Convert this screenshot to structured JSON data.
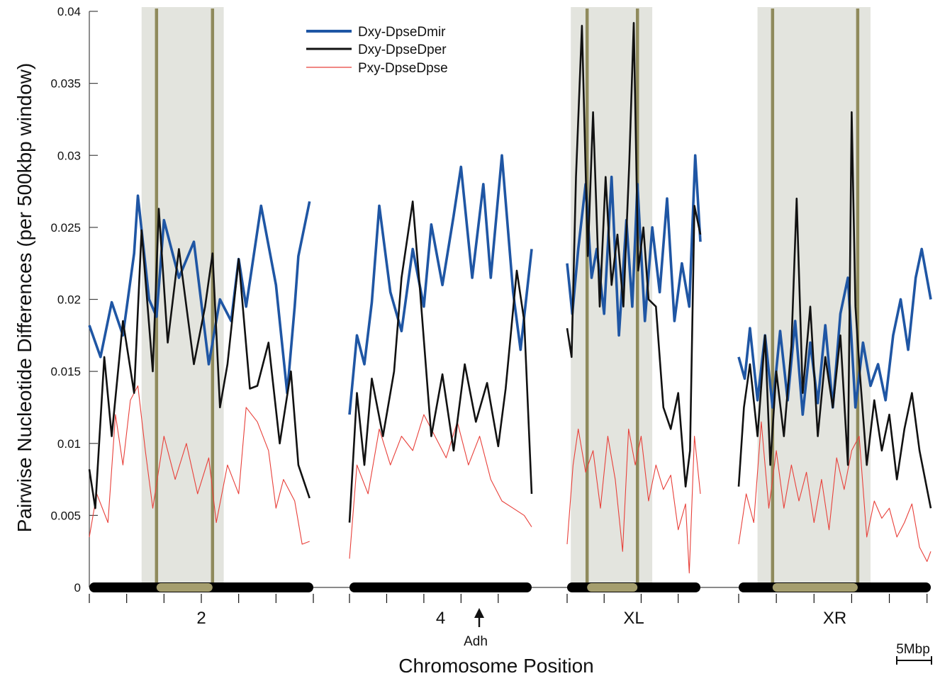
{
  "chart_data": {
    "type": "line",
    "ylabel": "Pairwise Nucleotide Differences (per 500kbp window)",
    "xlabel": "Chromosome Position",
    "ylim": [
      0,
      0.04
    ],
    "yticks": [
      0,
      0.005,
      0.01,
      0.015,
      0.02,
      0.025,
      0.03,
      0.035,
      0.04
    ],
    "ytick_labels": [
      "0",
      "0.005",
      "0.01",
      "0.015",
      "0.02",
      "0.025",
      "0.03",
      "0.035",
      "0.04"
    ],
    "scale_bar_label": "5Mbp",
    "annotation": {
      "label": "Adh",
      "chromosome": "4",
      "position_mbp": 25.5
    },
    "legend": {
      "placement": "top-left"
    },
    "colors": {
      "Dxy-DpseDmir": "#1f56a4",
      "Dxy-DpseDper": "#111111",
      "Pxy-DpseDpse": "#e8403a",
      "shade": "#e3e4de",
      "breakpoint": "#8f8a5c",
      "inversion_bar": "#a59e6e",
      "chromosome_bar": "#000000"
    },
    "chromosomes": [
      {
        "name": "2",
        "length_mbp": 30,
        "inversion_region_mbp": [
          7,
          18
        ],
        "breakpoints_mbp": [
          9,
          16.5
        ],
        "series": [
          {
            "name": "Dxy-DpseDmir",
            "x": [
              0,
              1.5,
              3,
              4.5,
              6,
              6.5,
              8,
              9,
              10,
              12,
              14,
              16,
              17.5,
              19,
              20,
              21,
              23,
              25,
              26.5,
              27.5,
              28,
              29.5
            ],
            "y": [
              0.0182,
              0.016,
              0.0198,
              0.0175,
              0.0232,
              0.0272,
              0.02,
              0.0188,
              0.0255,
              0.0215,
              0.024,
              0.0155,
              0.02,
              0.0185,
              0.0228,
              0.0195,
              0.0265,
              0.021,
              0.0135,
              0.0195,
              0.023,
              0.0268
            ]
          },
          {
            "name": "Dxy-DpseDper",
            "x": [
              0,
              0.8,
              2,
              3,
              4.5,
              6,
              7,
              8.5,
              9.3,
              10.5,
              12,
              14,
              15.5,
              16.5,
              17.5,
              18.5,
              20,
              21.5,
              22.5,
              24,
              25.5,
              27,
              28,
              29.5
            ],
            "y": [
              0.0082,
              0.0055,
              0.016,
              0.0105,
              0.0185,
              0.0135,
              0.0248,
              0.015,
              0.0263,
              0.017,
              0.0235,
              0.0155,
              0.0195,
              0.0232,
              0.0125,
              0.0155,
              0.0228,
              0.0138,
              0.014,
              0.017,
              0.01,
              0.015,
              0.0085,
              0.0062
            ]
          },
          {
            "name": "Pxy-DpseDpse",
            "x": [
              0,
              1,
              2.5,
              3.5,
              4.5,
              5.5,
              6.5,
              7.5,
              8.5,
              10,
              11.5,
              13,
              14.5,
              16,
              17,
              18.5,
              20,
              21,
              22.5,
              24,
              25,
              26,
              27.5,
              28.5,
              29.5
            ],
            "y": [
              0.0035,
              0.0065,
              0.0045,
              0.012,
              0.0085,
              0.013,
              0.014,
              0.0095,
              0.0055,
              0.0105,
              0.0075,
              0.01,
              0.0065,
              0.009,
              0.0045,
              0.0085,
              0.0065,
              0.0125,
              0.0115,
              0.0095,
              0.0055,
              0.0075,
              0.006,
              0.003,
              0.0032
            ]
          }
        ]
      },
      {
        "name": "4",
        "length_mbp": 24.5,
        "series": [
          {
            "name": "Dxy-DpseDmir",
            "x": [
              0,
              1,
              2,
              3,
              4,
              5.5,
              7,
              8.5,
              10,
              11,
              12.5,
              14,
              15,
              16.5,
              18,
              19,
              20.5,
              22,
              23,
              24.5
            ],
            "y": [
              0.012,
              0.0175,
              0.0155,
              0.0198,
              0.0265,
              0.0205,
              0.0178,
              0.0235,
              0.0195,
              0.0252,
              0.021,
              0.0258,
              0.0292,
              0.0215,
              0.028,
              0.0215,
              0.03,
              0.0205,
              0.0165,
              0.0235
            ]
          },
          {
            "name": "Dxy-DpseDper",
            "x": [
              0,
              1,
              2,
              3,
              4.5,
              6,
              7,
              8.5,
              9.5,
              11,
              12.5,
              14,
              15.5,
              17,
              18.5,
              20,
              21,
              22.5,
              23.5,
              24.5
            ],
            "y": [
              0.0045,
              0.0135,
              0.0085,
              0.0145,
              0.0105,
              0.015,
              0.0215,
              0.0268,
              0.0205,
              0.0105,
              0.0148,
              0.0095,
              0.0155,
              0.0115,
              0.0142,
              0.0098,
              0.0138,
              0.022,
              0.0185,
              0.0065
            ]
          },
          {
            "name": "Pxy-DpseDpse",
            "x": [
              0,
              1,
              2.5,
              4,
              5.5,
              7,
              8.5,
              10,
              11.5,
              13,
              14.5,
              16,
              17.5,
              19,
              20.5,
              22,
              23.5,
              24.5
            ],
            "y": [
              0.002,
              0.0085,
              0.0065,
              0.011,
              0.0085,
              0.0105,
              0.0095,
              0.012,
              0.0105,
              0.009,
              0.0115,
              0.0085,
              0.0105,
              0.0075,
              0.006,
              0.0055,
              0.005,
              0.0042
            ]
          }
        ]
      },
      {
        "name": "XL",
        "length_mbp": 18,
        "inversion_region_mbp": [
          0.5,
          11.5
        ],
        "breakpoints_mbp": [
          2.7,
          9.5
        ],
        "series": [
          {
            "name": "Dxy-DpseDmir",
            "x": [
              0,
              0.7,
              1.5,
              2.5,
              3.3,
              4,
              5,
              6,
              7,
              8,
              8.8,
              9.5,
              10.5,
              11.5,
              12.5,
              13.5,
              14.5,
              15.5,
              16.5,
              17.3,
              18
            ],
            "y": [
              0.0225,
              0.019,
              0.0235,
              0.028,
              0.0215,
              0.0235,
              0.019,
              0.0285,
              0.0175,
              0.0255,
              0.0195,
              0.028,
              0.0185,
              0.025,
              0.0205,
              0.027,
              0.0185,
              0.0225,
              0.0195,
              0.03,
              0.024
            ]
          },
          {
            "name": "Dxy-DpseDper",
            "x": [
              0,
              0.6,
              1.2,
              2,
              2.8,
              3.5,
              4.4,
              5.2,
              6,
              6.8,
              7.6,
              8.4,
              9,
              9.6,
              10.3,
              11,
              12,
              13,
              14,
              15,
              16,
              16.6,
              17.2,
              18
            ],
            "y": [
              0.018,
              0.016,
              0.0285,
              0.039,
              0.023,
              0.033,
              0.0195,
              0.0285,
              0.021,
              0.0245,
              0.0195,
              0.0295,
              0.0392,
              0.022,
              0.025,
              0.02,
              0.0195,
              0.0125,
              0.011,
              0.0135,
              0.007,
              0.0095,
              0.0265,
              0.0245
            ]
          },
          {
            "name": "Pxy-DpseDpse",
            "x": [
              0,
              0.8,
              1.5,
              2.5,
              3.5,
              4.5,
              5.5,
              6.5,
              7.5,
              8.3,
              9.2,
              10,
              11,
              12,
              13,
              14,
              15,
              16,
              16.5,
              17.2,
              18
            ],
            "y": [
              0.003,
              0.0085,
              0.011,
              0.008,
              0.0095,
              0.0055,
              0.0105,
              0.0075,
              0.0025,
              0.011,
              0.0085,
              0.0105,
              0.006,
              0.0085,
              0.0068,
              0.0078,
              0.004,
              0.0058,
              0.001,
              0.0105,
              0.0065
            ]
          }
        ]
      },
      {
        "name": "XR",
        "length_mbp": 25.5,
        "inversion_region_mbp": [
          2.5,
          17.5
        ],
        "breakpoints_mbp": [
          4.5,
          15.8
        ],
        "series": [
          {
            "name": "Dxy-DpseDmir",
            "x": [
              0,
              0.8,
              1.5,
              2.5,
              3.5,
              4.5,
              5.5,
              6.5,
              7.5,
              8.5,
              9.5,
              10.5,
              11.5,
              12.5,
              13.5,
              14.5,
              15.5,
              16.5,
              17.5,
              18.5,
              19.5,
              20.5,
              21.5,
              22.5,
              23.5,
              24.3,
              25.5
            ],
            "y": [
              0.016,
              0.0145,
              0.018,
              0.013,
              0.0175,
              0.0125,
              0.0178,
              0.013,
              0.0185,
              0.012,
              0.017,
              0.0128,
              0.0182,
              0.0125,
              0.019,
              0.0215,
              0.0125,
              0.017,
              0.014,
              0.0155,
              0.013,
              0.0175,
              0.02,
              0.0165,
              0.0215,
              0.0235,
              0.02
            ]
          },
          {
            "name": "Dxy-DpseDper",
            "x": [
              0,
              0.7,
              1.5,
              2.5,
              3.5,
              4.2,
              5,
              6,
              7,
              7.7,
              8.5,
              9.5,
              10.5,
              11.5,
              12.5,
              13.5,
              14.5,
              15,
              15.5,
              16,
              17,
              18,
              19,
              20,
              21,
              22,
              23,
              24,
              25.5
            ],
            "y": [
              0.007,
              0.0125,
              0.0155,
              0.0105,
              0.0175,
              0.0085,
              0.015,
              0.0105,
              0.0168,
              0.027,
              0.0135,
              0.0195,
              0.0105,
              0.016,
              0.0125,
              0.0175,
              0.0085,
              0.033,
              0.0195,
              0.0155,
              0.0085,
              0.013,
              0.0095,
              0.012,
              0.0075,
              0.011,
              0.0135,
              0.0095,
              0.0055
            ]
          },
          {
            "name": "Pxy-DpseDpse",
            "x": [
              0,
              1,
              2,
              3,
              4,
              5,
              6,
              7,
              8,
              9,
              10,
              11,
              12,
              13,
              14,
              15,
              16,
              17,
              18,
              19,
              20,
              21,
              22,
              23,
              24,
              25,
              25.5
            ],
            "y": [
              0.003,
              0.0065,
              0.0045,
              0.0115,
              0.0055,
              0.0095,
              0.0055,
              0.0085,
              0.006,
              0.008,
              0.0045,
              0.0075,
              0.004,
              0.009,
              0.0068,
              0.0095,
              0.0105,
              0.0035,
              0.006,
              0.0048,
              0.0055,
              0.0035,
              0.0045,
              0.0058,
              0.0028,
              0.0018,
              0.0025
            ]
          }
        ]
      }
    ]
  }
}
